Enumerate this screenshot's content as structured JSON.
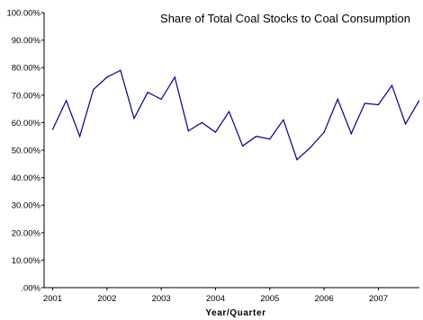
{
  "chart_data": {
    "type": "line",
    "title": "Share of Total Coal Stocks to Coal Consumption",
    "xlabel": "Year/Quarter",
    "ylabel": "",
    "ylim": [
      0,
      100
    ],
    "y_ticks": [
      ".00%",
      "10.00%",
      "20.00%",
      "30.00%",
      "40.00%",
      "50.00%",
      "60.00%",
      "70.00%",
      "80.00%",
      "90.00%",
      "100.00%"
    ],
    "x_tick_labels": [
      "2001",
      "2002",
      "2003",
      "2004",
      "2005",
      "2006",
      "2007"
    ],
    "grid": false,
    "legend": "none",
    "line_color": "#000080",
    "series": [
      {
        "x": [
          "2001Q1",
          "2001Q2",
          "2001Q3",
          "2001Q4",
          "2002Q1",
          "2002Q2",
          "2002Q3",
          "2002Q4",
          "2003Q1",
          "2003Q2",
          "2003Q3",
          "2003Q4",
          "2004Q1",
          "2004Q2",
          "2004Q3",
          "2004Q4",
          "2005Q1",
          "2005Q2",
          "2005Q3",
          "2005Q4",
          "2006Q1",
          "2006Q2",
          "2006Q3",
          "2006Q4",
          "2007Q1",
          "2007Q2",
          "2007Q3",
          "2007Q4"
        ],
        "values": [
          57.5,
          68.0,
          55.0,
          72.0,
          76.5,
          79.0,
          61.5,
          71.0,
          68.5,
          76.5,
          57.0,
          60.0,
          56.5,
          64.0,
          51.5,
          55.0,
          54.0,
          61.0,
          46.5,
          51.0,
          56.5,
          68.5,
          56.0,
          67.0,
          66.5,
          73.5,
          59.5,
          68.0
        ]
      }
    ]
  }
}
